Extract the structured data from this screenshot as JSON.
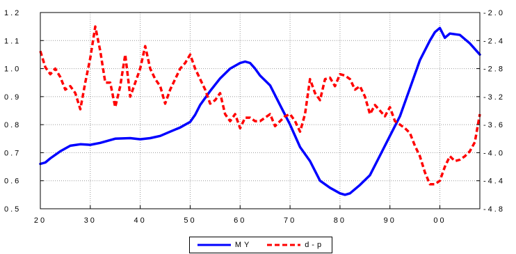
{
  "chart_data": {
    "type": "line",
    "title": "",
    "xlabel": "",
    "ylabel": "",
    "x_tick_labels": [
      "20",
      "30",
      "40",
      "50",
      "60",
      "70",
      "80",
      "90",
      "00"
    ],
    "x_tick_years": [
      1920,
      1930,
      1940,
      1950,
      1960,
      1970,
      1980,
      1990,
      2000
    ],
    "xlim": [
      1920,
      2008
    ],
    "left_axis": {
      "ylim": [
        0.5,
        1.2
      ],
      "ticks": [
        "0.5",
        "0.6",
        "0.7",
        "0.8",
        "0.9",
        "1.0",
        "1.1",
        "1.2"
      ]
    },
    "right_axis": {
      "ylim": [
        -4.8,
        -2.0
      ],
      "ticks": [
        "-4.8",
        "-4.4",
        "-4.0",
        "-3.6",
        "-3.2",
        "-2.8",
        "-2.4",
        "-2.0"
      ]
    },
    "legend_position": "bottom-center",
    "series": [
      {
        "name": "MY",
        "axis": "left",
        "color": "#0000ff",
        "style": "solid",
        "x": [
          1920,
          1921,
          1922,
          1924,
          1926,
          1928,
          1930,
          1932,
          1935,
          1938,
          1940,
          1942,
          1944,
          1946,
          1948,
          1950,
          1951,
          1952,
          1954,
          1956,
          1958,
          1960,
          1961,
          1962,
          1963,
          1964,
          1966,
          1968,
          1970,
          1972,
          1974,
          1976,
          1978,
          1980,
          1981,
          1982,
          1984,
          1986,
          1988,
          1990,
          1992,
          1994,
          1996,
          1998,
          1999,
          2000,
          2001,
          2002,
          2004,
          2006,
          2008
        ],
        "values": [
          0.66,
          0.665,
          0.68,
          0.705,
          0.725,
          0.73,
          0.728,
          0.735,
          0.75,
          0.752,
          0.748,
          0.752,
          0.76,
          0.775,
          0.79,
          0.81,
          0.835,
          0.87,
          0.92,
          0.965,
          1.0,
          1.02,
          1.025,
          1.02,
          1.0,
          0.975,
          0.94,
          0.87,
          0.8,
          0.72,
          0.67,
          0.6,
          0.575,
          0.555,
          0.55,
          0.555,
          0.585,
          0.62,
          0.69,
          0.76,
          0.83,
          0.93,
          1.03,
          1.1,
          1.13,
          1.145,
          1.11,
          1.125,
          1.12,
          1.09,
          1.05
        ]
      },
      {
        "name": "d-p",
        "axis": "right",
        "color": "#ff0000",
        "style": "dashed",
        "x": [
          1920,
          1921,
          1922,
          1923,
          1924,
          1925,
          1926,
          1927,
          1928,
          1929,
          1930,
          1931,
          1932,
          1933,
          1934,
          1935,
          1936,
          1937,
          1938,
          1939,
          1940,
          1941,
          1942,
          1943,
          1944,
          1945,
          1946,
          1947,
          1948,
          1949,
          1950,
          1951,
          1952,
          1953,
          1954,
          1955,
          1956,
          1957,
          1958,
          1959,
          1960,
          1961,
          1962,
          1963,
          1964,
          1965,
          1966,
          1967,
          1968,
          1969,
          1970,
          1971,
          1972,
          1973,
          1974,
          1975,
          1976,
          1977,
          1978,
          1979,
          1980,
          1981,
          1982,
          1983,
          1984,
          1985,
          1986,
          1987,
          1988,
          1989,
          1990,
          1991,
          1992,
          1993,
          1994,
          1995,
          1996,
          1997,
          1998,
          1999,
          2000,
          2001,
          2002,
          2003,
          2004,
          2005,
          2006,
          2007,
          2008
        ],
        "values": [
          -2.55,
          -2.78,
          -2.88,
          -2.8,
          -2.92,
          -3.1,
          -3.05,
          -3.15,
          -3.38,
          -3.0,
          -2.65,
          -2.2,
          -2.55,
          -3.0,
          -3.0,
          -3.35,
          -3.05,
          -2.6,
          -3.2,
          -3.0,
          -2.8,
          -2.48,
          -2.8,
          -2.95,
          -3.05,
          -3.3,
          -3.1,
          -2.95,
          -2.8,
          -2.72,
          -2.6,
          -2.8,
          -2.95,
          -3.1,
          -3.3,
          -3.25,
          -3.15,
          -3.45,
          -3.55,
          -3.45,
          -3.65,
          -3.5,
          -3.5,
          -3.55,
          -3.55,
          -3.5,
          -3.45,
          -3.62,
          -3.55,
          -3.48,
          -3.45,
          -3.55,
          -3.7,
          -3.45,
          -2.95,
          -3.15,
          -3.25,
          -2.95,
          -2.93,
          -3.05,
          -2.88,
          -2.9,
          -2.95,
          -3.1,
          -3.05,
          -3.2,
          -3.45,
          -3.32,
          -3.4,
          -3.48,
          -3.35,
          -3.55,
          -3.6,
          -3.65,
          -3.72,
          -3.9,
          -4.05,
          -4.28,
          -4.45,
          -4.45,
          -4.4,
          -4.2,
          -4.05,
          -4.12,
          -4.1,
          -4.05,
          -3.98,
          -3.85,
          -3.45
        ]
      }
    ]
  }
}
